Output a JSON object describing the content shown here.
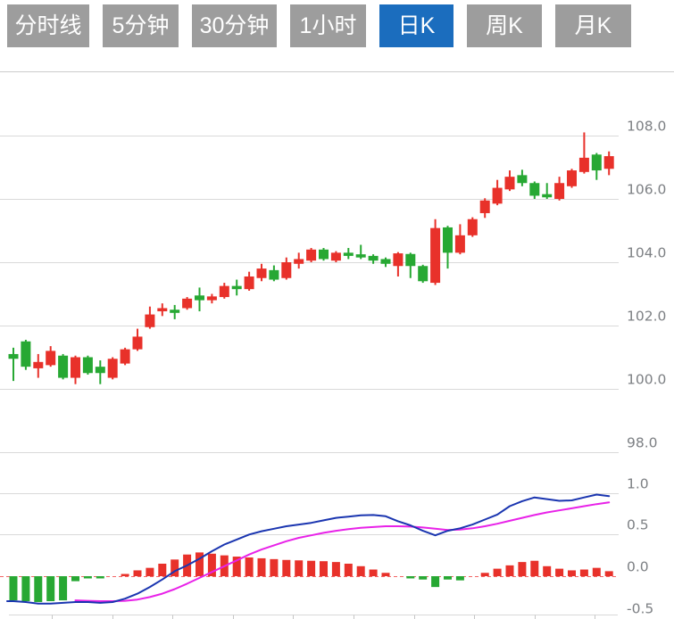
{
  "toolbar": {
    "buttons": [
      {
        "label": "分时线",
        "active": false
      },
      {
        "label": "5分钟",
        "active": false
      },
      {
        "label": "30分钟",
        "active": false
      },
      {
        "label": "1小时",
        "active": false
      },
      {
        "label": "日K",
        "active": true
      },
      {
        "label": "周K",
        "active": false
      },
      {
        "label": "月K",
        "active": false
      }
    ],
    "active_color": "#1b6dbe",
    "inactive_color": "#9d9d9d",
    "text_color": "#ffffff"
  },
  "chart_data": {
    "type": "candlestick",
    "title": "",
    "price_panel": {
      "axis_ticks": [
        "108.0",
        "106.0",
        "104.0",
        "102.0",
        "100.0",
        "98.0"
      ],
      "axis_values": [
        108,
        106,
        104,
        102,
        100,
        98
      ],
      "ylim": [
        97.0,
        110.0
      ]
    },
    "candles": {
      "open": [
        101.1,
        101.5,
        100.65,
        100.75,
        101.05,
        100.35,
        101.0,
        100.7,
        100.35,
        100.8,
        101.25,
        101.95,
        102.45,
        102.5,
        102.55,
        102.95,
        102.8,
        102.9,
        103.25,
        103.15,
        103.5,
        103.75,
        103.5,
        103.95,
        104.05,
        104.4,
        104.05,
        104.3,
        104.25,
        104.2,
        104.1,
        103.88,
        104.26,
        103.88,
        103.35,
        105.1,
        104.3,
        104.85,
        105.55,
        105.85,
        106.3,
        106.75,
        106.5,
        106.15,
        106.0,
        106.4,
        106.85,
        107.4,
        106.95
      ],
      "close": [
        100.95,
        100.7,
        100.85,
        101.2,
        100.35,
        101.0,
        100.5,
        100.5,
        100.95,
        101.25,
        101.65,
        102.35,
        102.55,
        102.4,
        102.85,
        102.8,
        102.92,
        103.25,
        103.15,
        103.55,
        103.8,
        103.45,
        104.0,
        104.1,
        104.4,
        104.1,
        104.3,
        104.2,
        104.15,
        104.05,
        103.95,
        104.28,
        103.88,
        103.4,
        105.08,
        104.3,
        104.85,
        105.36,
        105.95,
        106.35,
        106.7,
        106.5,
        106.1,
        106.05,
        106.5,
        106.9,
        107.3,
        106.9,
        107.35
      ],
      "high": [
        101.3,
        101.55,
        101.1,
        101.35,
        101.1,
        101.05,
        101.05,
        100.9,
        101.0,
        101.3,
        101.9,
        102.6,
        102.7,
        102.65,
        102.9,
        103.2,
        103.0,
        103.35,
        103.45,
        103.7,
        103.95,
        103.9,
        104.15,
        104.3,
        104.45,
        104.45,
        104.35,
        104.45,
        104.55,
        104.25,
        104.15,
        104.32,
        104.3,
        103.92,
        105.36,
        105.15,
        105.2,
        105.42,
        106.02,
        106.6,
        106.9,
        106.92,
        106.55,
        106.5,
        106.7,
        106.95,
        108.1,
        107.45,
        107.5
      ],
      "low": [
        100.25,
        100.6,
        100.35,
        100.7,
        100.3,
        100.15,
        100.45,
        100.15,
        100.3,
        100.75,
        101.2,
        101.9,
        102.3,
        102.2,
        102.5,
        102.45,
        102.7,
        102.85,
        102.95,
        103.1,
        103.4,
        103.4,
        103.45,
        103.8,
        104.0,
        104.05,
        104.0,
        104.1,
        104.1,
        103.95,
        103.85,
        103.55,
        103.5,
        103.35,
        103.28,
        103.8,
        104.25,
        104.8,
        105.4,
        105.8,
        106.25,
        106.4,
        106.0,
        106.0,
        105.95,
        106.35,
        106.8,
        106.6,
        106.75
      ]
    },
    "macd_panel": {
      "axis_ticks": [
        "1.0",
        "0.5",
        "0.0",
        "-0.5"
      ],
      "axis_values": [
        1.0,
        0.5,
        0.0,
        -0.5
      ],
      "histogram": [
        -0.29,
        -0.3,
        -0.31,
        -0.3,
        -0.29,
        -0.06,
        -0.015,
        -0.015,
        0,
        0.015,
        0.07,
        0.1,
        0.15,
        0.2,
        0.26,
        0.285,
        0.27,
        0.25,
        0.235,
        0.225,
        0.215,
        0.205,
        0.195,
        0.19,
        0.185,
        0.18,
        0.17,
        0.15,
        0.12,
        0.08,
        0.04,
        0,
        -0.015,
        -0.04,
        -0.13,
        -0.04,
        -0.05,
        0,
        0.04,
        0.09,
        0.13,
        0.17,
        0.185,
        0.12,
        0.09,
        0.07,
        0.08,
        0.1,
        0.06
      ],
      "dif": [
        -0.3,
        -0.31,
        -0.33,
        -0.33,
        -0.32,
        -0.31,
        -0.31,
        -0.32,
        -0.31,
        -0.27,
        -0.21,
        -0.13,
        -0.04,
        0.06,
        0.13,
        0.21,
        0.3,
        0.38,
        0.44,
        0.5,
        0.54,
        0.57,
        0.6,
        0.62,
        0.64,
        0.67,
        0.7,
        0.715,
        0.73,
        0.735,
        0.72,
        0.66,
        0.61,
        0.545,
        0.49,
        0.545,
        0.575,
        0.62,
        0.68,
        0.74,
        0.84,
        0.9,
        0.945,
        0.925,
        0.905,
        0.91,
        0.945,
        0.98,
        0.96
      ],
      "dea": [
        null,
        null,
        null,
        null,
        null,
        -0.29,
        -0.295,
        -0.3,
        -0.3,
        -0.295,
        -0.28,
        -0.25,
        -0.21,
        -0.155,
        -0.09,
        -0.02,
        0.05,
        0.12,
        0.19,
        0.26,
        0.32,
        0.37,
        0.42,
        0.46,
        0.49,
        0.52,
        0.545,
        0.565,
        0.58,
        0.59,
        0.6,
        0.6,
        0.595,
        0.585,
        0.57,
        0.555,
        0.56,
        0.575,
        0.6,
        0.63,
        0.665,
        0.7,
        0.735,
        0.765,
        0.79,
        0.815,
        0.84,
        0.865,
        0.885
      ]
    },
    "colors": {
      "up": "#e8312a",
      "down": "#27a833",
      "dif_line": "#1a35b0",
      "dea_line": "#e822e8",
      "zero_line": "#f26666",
      "grid": "#d9d9d9",
      "axis_text": "#7d8084"
    }
  }
}
